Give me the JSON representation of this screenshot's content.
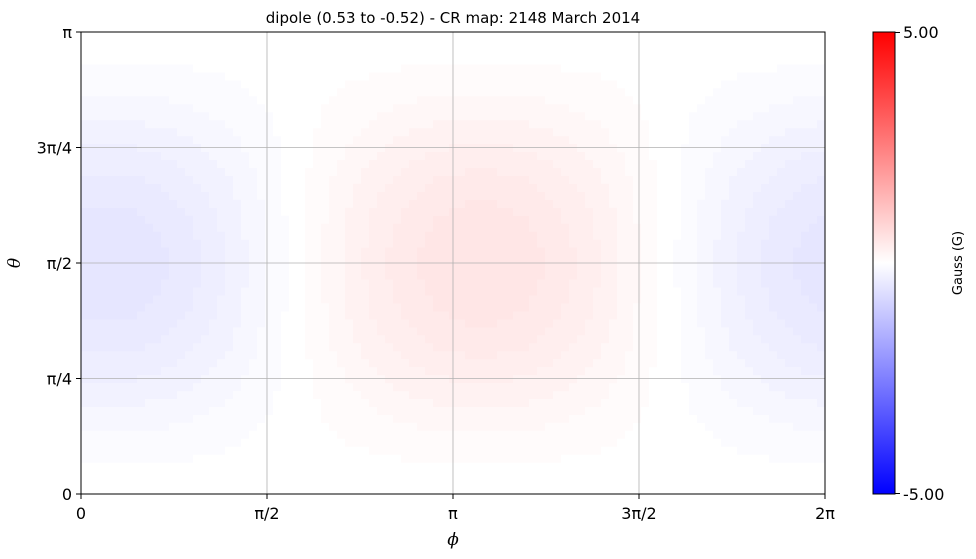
{
  "chart_data": {
    "type": "heatmap",
    "title": "dipole (0.53 to -0.52) - CR map: 2148 March 2014",
    "xlabel": "ϕ",
    "ylabel": "θ",
    "x_ticks": [
      "0",
      "π/2",
      "π",
      "3π/2",
      "2π"
    ],
    "y_ticks": [
      "0",
      "π/4",
      "π/2",
      "3π/4",
      "π"
    ],
    "xlim": [
      0,
      6.2832
    ],
    "ylim": [
      0,
      3.1416
    ],
    "grid": true,
    "field": {
      "description_model": "dipole-like pattern",
      "max_value": 0.53,
      "min_value": -0.52,
      "positive_center_phi": 3.38,
      "negative_center_phi": 0.2,
      "center_theta": 1.5708
    },
    "colorbar": {
      "label": "Gauss (G)",
      "min": -5.0,
      "max": 5.0,
      "min_label": "-5.00",
      "max_label": "5.00",
      "colormap": "bwr",
      "low_color": "#0000ff",
      "mid_color": "#ffffff",
      "high_color": "#ff0000"
    }
  }
}
